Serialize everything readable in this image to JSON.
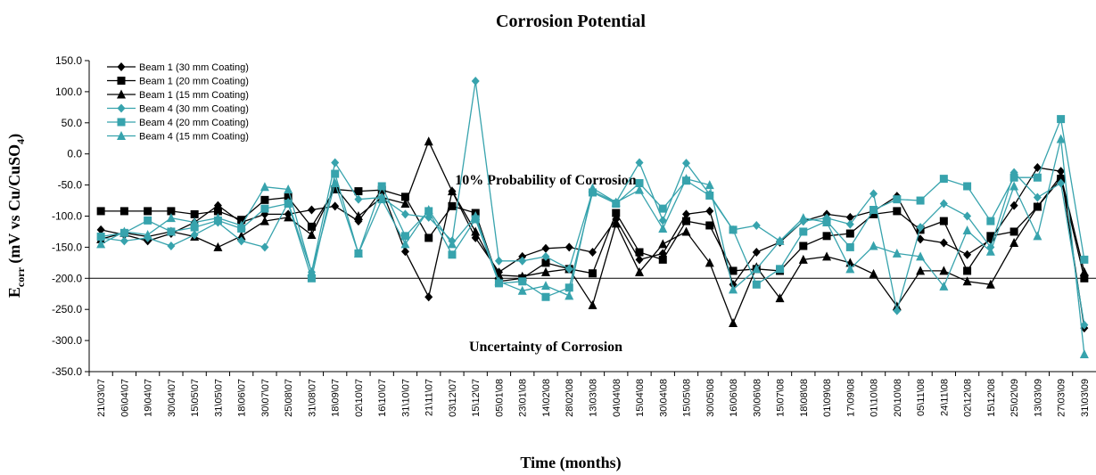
{
  "chart_data": {
    "type": "line",
    "title": "Corrosion Potential",
    "x_label": "Time (months)",
    "y_label": {
      "main": "E",
      "sub": "corr",
      "rest": " (mV vs Cu/CuSO",
      "sub2": "4",
      "end": ")"
    },
    "annotations": [
      "10% Probability of Corrosion",
      "Uncertainty of Corrosion"
    ],
    "reference_line": -200,
    "categories": [
      "21\\03\\07",
      "06\\04\\07",
      "19\\04\\07",
      "30\\04\\07",
      "15\\05\\07",
      "31\\05\\07",
      "18\\06\\07",
      "30\\07\\07",
      "25\\08\\07",
      "31\\08\\07",
      "18\\09\\07",
      "02\\10\\07",
      "16\\10\\07",
      "31\\10\\07",
      "21\\11\\07",
      "03\\12\\07",
      "15\\12\\07",
      "05\\01\\08",
      "23\\01\\08",
      "14\\02\\08",
      "28\\02\\08",
      "13\\03\\08",
      "04\\04\\08",
      "15\\04\\08",
      "30\\04\\08",
      "15\\05\\08",
      "30\\05\\08",
      "16\\06\\08",
      "30\\06\\08",
      "15\\07\\08",
      "18\\08\\08",
      "01\\09\\08",
      "17\\09\\08",
      "01\\10\\08",
      "20\\10\\08",
      "05\\11\\08",
      "24\\11\\08",
      "02\\12\\08",
      "15\\12\\08",
      "25\\02\\09",
      "13\\03\\09",
      "27\\03\\09",
      "31\\03\\09"
    ],
    "series": [
      {
        "name": "Beam 1 (30 mm Coating)",
        "color": "#000000",
        "marker": "diamond",
        "values": [
          -122,
          -130,
          -140,
          -128,
          -110,
          -83,
          -110,
          -97,
          -97,
          -90,
          -84,
          -108,
          -58,
          -157,
          -230,
          -60,
          -135,
          -190,
          -165,
          -152,
          -150,
          -158,
          -105,
          -170,
          -160,
          -97,
          -92,
          -210,
          -158,
          -142,
          -108,
          -97,
          -102,
          -92,
          -68,
          -137,
          -143,
          -162,
          -138,
          -83,
          -22,
          -28,
          -280
        ]
      },
      {
        "name": "Beam 1 (20 mm Coating)",
        "color": "#000000",
        "marker": "square",
        "values": [
          -92,
          -92,
          -92,
          -92,
          -97,
          -92,
          -106,
          -74,
          -70,
          -117,
          -57,
          -60,
          -58,
          -69,
          -135,
          -84,
          -95,
          -205,
          -200,
          -175,
          -185,
          -192,
          -95,
          -158,
          -170,
          -108,
          -115,
          -188,
          -185,
          -188,
          -148,
          -132,
          -128,
          -97,
          -92,
          -122,
          -108,
          -188,
          -132,
          -125,
          -85,
          -40,
          -200
        ]
      },
      {
        "name": "Beam 1 (15 mm Coating)",
        "color": "#000000",
        "marker": "triangle",
        "values": [
          -137,
          -127,
          -133,
          -125,
          -133,
          -150,
          -132,
          -108,
          -102,
          -130,
          -53,
          -100,
          -70,
          -80,
          20,
          -60,
          -125,
          -195,
          -197,
          -190,
          -185,
          -243,
          -112,
          -190,
          -145,
          -125,
          -175,
          -272,
          -182,
          -232,
          -170,
          -165,
          -175,
          -193,
          -245,
          -188,
          -188,
          -205,
          -210,
          -143,
          -85,
          -35,
          -190
        ]
      },
      {
        "name": "Beam 4 (30 mm Coating)",
        "color": "#37a3ad",
        "marker": "diamond",
        "values": [
          -135,
          -140,
          -135,
          -148,
          -130,
          -110,
          -140,
          -150,
          -78,
          -190,
          -14,
          -73,
          -70,
          -97,
          -102,
          -140,
          117,
          -172,
          -172,
          -165,
          -185,
          -60,
          -78,
          -14,
          -107,
          -15,
          -65,
          -122,
          -115,
          -140,
          -108,
          -103,
          -113,
          -64,
          -252,
          -118,
          -80,
          -100,
          -150,
          -30,
          -70,
          -47,
          -275
        ]
      },
      {
        "name": "Beam 4 (20 mm Coating)",
        "color": "#37a3ad",
        "marker": "square",
        "values": [
          -133,
          -127,
          -107,
          -125,
          -118,
          -107,
          -120,
          -88,
          -80,
          -200,
          -32,
          -160,
          -52,
          -132,
          -92,
          -162,
          -105,
          -208,
          -205,
          -230,
          -215,
          -62,
          -80,
          -47,
          -88,
          -43,
          -67,
          -122,
          -210,
          -185,
          -125,
          -108,
          -150,
          -90,
          -73,
          -75,
          -40,
          -52,
          -108,
          -38,
          -38,
          56,
          -170
        ]
      },
      {
        "name": "Beam 4 (15 mm Coating)",
        "color": "#37a3ad",
        "marker": "triangle",
        "values": [
          -145,
          -125,
          -130,
          -103,
          -110,
          -103,
          -115,
          -53,
          -57,
          -190,
          -47,
          -160,
          -73,
          -145,
          -90,
          -145,
          -100,
          -205,
          -220,
          -212,
          -228,
          -55,
          -78,
          -58,
          -120,
          -40,
          -50,
          -218,
          -185,
          -140,
          -103,
          -110,
          -185,
          -148,
          -160,
          -165,
          -213,
          -123,
          -157,
          -52,
          -132,
          24,
          -322
        ]
      }
    ],
    "ylim": [
      -350,
      150
    ],
    "yticks": [
      {
        "value": -350,
        "label": "-350.0"
      },
      {
        "value": -300,
        "label": "-300.0"
      },
      {
        "value": -250,
        "label": "-250.0"
      },
      {
        "value": -200,
        "label": "-200.0"
      },
      {
        "value": -150,
        "label": "-150.0"
      },
      {
        "value": -100,
        "label": "-100.0"
      },
      {
        "value": -50,
        "label": "-50.0"
      },
      {
        "value": 0,
        "label": "0.0"
      },
      {
        "value": 50,
        "label": "50.0"
      },
      {
        "value": 100,
        "label": "100.0"
      },
      {
        "value": 150,
        "label": "150.0"
      }
    ],
    "legend": "top-left",
    "grid": false
  }
}
